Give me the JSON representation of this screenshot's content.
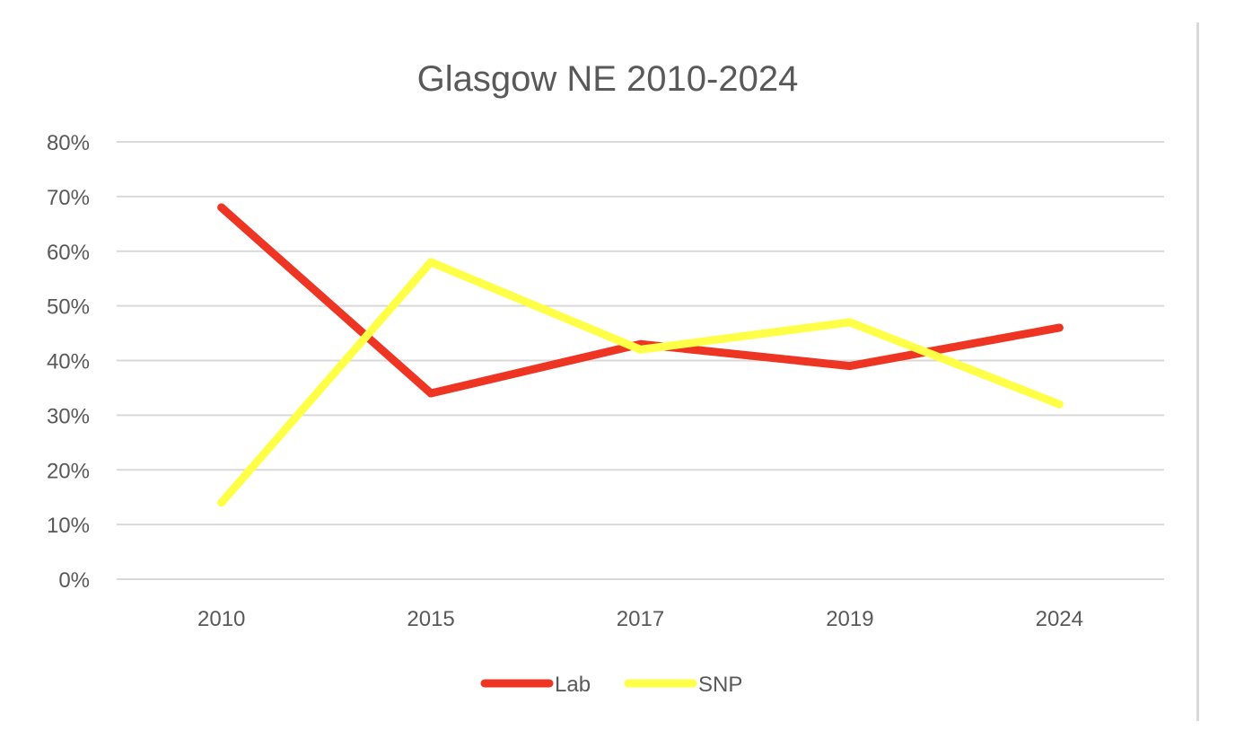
{
  "chart_data": {
    "type": "line",
    "title": "Glasgow NE 2010-2024",
    "categories": [
      "2010",
      "2015",
      "2017",
      "2019",
      "2024"
    ],
    "series": [
      {
        "name": "Lab",
        "color": "#ee3523",
        "values": [
          68,
          34,
          43,
          39,
          46
        ]
      },
      {
        "name": "SNP",
        "color": "#ffff47",
        "values": [
          14,
          58,
          42,
          47,
          32
        ]
      }
    ],
    "ylim": [
      0,
      80
    ],
    "yticks": [
      0,
      10,
      20,
      30,
      40,
      50,
      60,
      70,
      80
    ],
    "ytick_labels": [
      "0%",
      "10%",
      "20%",
      "30%",
      "40%",
      "50%",
      "60%",
      "70%",
      "80%"
    ],
    "xlabel": "",
    "ylabel": "",
    "grid": true,
    "legend_position": "bottom"
  },
  "colors": {
    "gridline": "#d9d9d9",
    "text": "#595959"
  }
}
